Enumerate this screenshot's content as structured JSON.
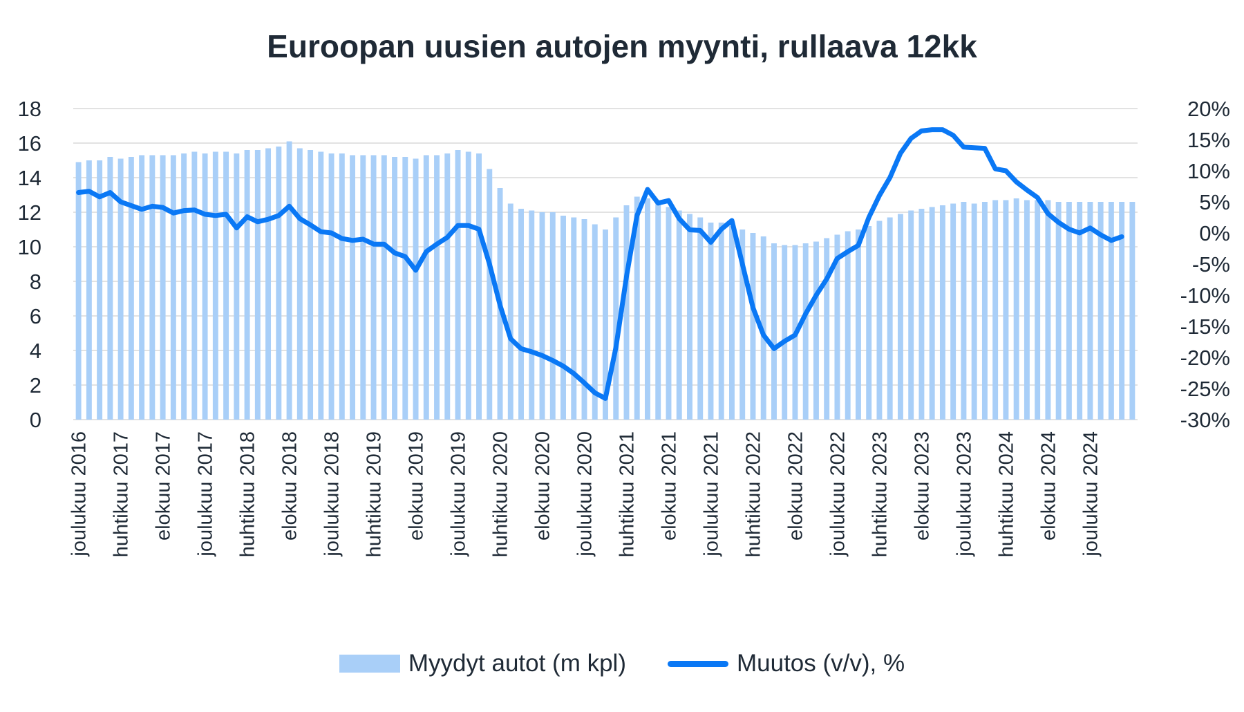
{
  "chart_data": {
    "type": "bar",
    "title": "Euroopan uusien autojen myynti, rullaava 12kk",
    "xlabel": "",
    "ylabel": "",
    "ylim": [
      0,
      18
    ],
    "y_ticks": [
      "0",
      "2",
      "4",
      "6",
      "8",
      "10",
      "12",
      "14",
      "16",
      "18"
    ],
    "y2lim": [
      -30,
      20
    ],
    "y2_ticks": [
      "-30%",
      "-25%",
      "-20%",
      "-15%",
      "-10%",
      "-5%",
      "0%",
      "5%",
      "10%",
      "15%",
      "20%"
    ],
    "grid": true,
    "legend_position": "bottom",
    "x_tick_labels": [
      {
        "index": 0,
        "label": "joulukuu 2016"
      },
      {
        "index": 4,
        "label": "huhtikuu 2017"
      },
      {
        "index": 8,
        "label": "elokuu 2017"
      },
      {
        "index": 12,
        "label": "joulukuu 2017"
      },
      {
        "index": 16,
        "label": "huhtikuu 2018"
      },
      {
        "index": 20,
        "label": "elokuu 2018"
      },
      {
        "index": 24,
        "label": "joulukuu 2018"
      },
      {
        "index": 28,
        "label": "huhtikuu 2019"
      },
      {
        "index": 32,
        "label": "elokuu 2019"
      },
      {
        "index": 36,
        "label": "joulukuu 2019"
      },
      {
        "index": 40,
        "label": "huhtikuu 2020"
      },
      {
        "index": 44,
        "label": "elokuu 2020"
      },
      {
        "index": 48,
        "label": "joulukuu 2020"
      },
      {
        "index": 52,
        "label": "huhtikuu 2021"
      },
      {
        "index": 56,
        "label": "elokuu 2021"
      },
      {
        "index": 60,
        "label": "joulukuu 2021"
      },
      {
        "index": 64,
        "label": "huhtikuu 2022"
      },
      {
        "index": 68,
        "label": "elokuu 2022"
      },
      {
        "index": 72,
        "label": "joulukuu 2022"
      },
      {
        "index": 76,
        "label": "huhtikuu 2023"
      },
      {
        "index": 80,
        "label": "elokuu 2023"
      },
      {
        "index": 84,
        "label": "joulukuu 2023"
      },
      {
        "index": 88,
        "label": "huhtikuu 2024"
      },
      {
        "index": 92,
        "label": "elokuu 2024"
      },
      {
        "index": 96,
        "label": "joulukuu 2024"
      }
    ],
    "series": [
      {
        "name": "Myydyt autot (m kpl)",
        "type": "bar",
        "axis": "left",
        "color": "#a9cff8",
        "values": [
          14.9,
          15.0,
          15.0,
          15.2,
          15.1,
          15.2,
          15.3,
          15.3,
          15.3,
          15.3,
          15.4,
          15.5,
          15.4,
          15.5,
          15.5,
          15.4,
          15.6,
          15.6,
          15.7,
          15.8,
          16.1,
          15.7,
          15.6,
          15.5,
          15.4,
          15.4,
          15.3,
          15.3,
          15.3,
          15.3,
          15.2,
          15.2,
          15.1,
          15.3,
          15.3,
          15.4,
          15.6,
          15.5,
          15.4,
          14.5,
          13.4,
          12.5,
          12.2,
          12.1,
          12.0,
          12.0,
          11.8,
          11.7,
          11.6,
          11.3,
          11.0,
          11.7,
          12.4,
          12.9,
          12.8,
          12.6,
          12.3,
          12.1,
          11.9,
          11.7,
          11.4,
          11.4,
          11.2,
          11.0,
          10.8,
          10.6,
          10.2,
          10.1,
          10.1,
          10.2,
          10.3,
          10.5,
          10.7,
          10.9,
          11.0,
          11.2,
          11.5,
          11.7,
          11.9,
          12.1,
          12.2,
          12.3,
          12.4,
          12.5,
          12.6,
          12.5,
          12.6,
          12.7,
          12.7,
          12.8,
          12.7,
          12.7,
          12.7,
          12.6,
          12.6,
          12.6,
          12.6,
          12.6,
          12.6,
          12.6,
          12.6
        ]
      },
      {
        "name": "Muutos (v/v), %",
        "type": "line",
        "axis": "right",
        "color": "#0a78f5",
        "values": [
          6.5,
          6.7,
          5.8,
          6.5,
          5.0,
          4.4,
          3.8,
          4.3,
          4.1,
          3.2,
          3.6,
          3.7,
          3.0,
          2.8,
          3.0,
          0.8,
          2.6,
          1.8,
          2.2,
          2.8,
          4.3,
          2.3,
          1.3,
          0.2,
          0.0,
          -0.9,
          -1.2,
          -1.0,
          -1.8,
          -1.8,
          -3.2,
          -3.8,
          -6.0,
          -3.0,
          -1.8,
          -0.7,
          1.2,
          1.2,
          0.6,
          -5.0,
          -11.6,
          -17.0,
          -18.6,
          -19.1,
          -19.7,
          -20.5,
          -21.4,
          -22.6,
          -24.1,
          -25.7,
          -26.6,
          -18.4,
          -7.0,
          2.8,
          7.0,
          4.8,
          5.2,
          2.3,
          0.5,
          0.4,
          -1.5,
          0.6,
          2.0,
          -5.0,
          -12.0,
          -16.4,
          -18.6,
          -17.4,
          -16.4,
          -13.0,
          -10.0,
          -7.4,
          -4.1,
          -3.0,
          -2.0,
          2.5,
          6.0,
          8.9,
          12.8,
          15.2,
          16.4,
          16.6,
          16.6,
          15.7,
          13.8,
          13.7,
          13.6,
          10.3,
          10.0,
          8.2,
          6.9,
          5.7,
          3.1,
          1.7,
          0.6,
          0.0,
          0.8,
          -0.3,
          -1.2,
          -0.6
        ]
      }
    ]
  }
}
